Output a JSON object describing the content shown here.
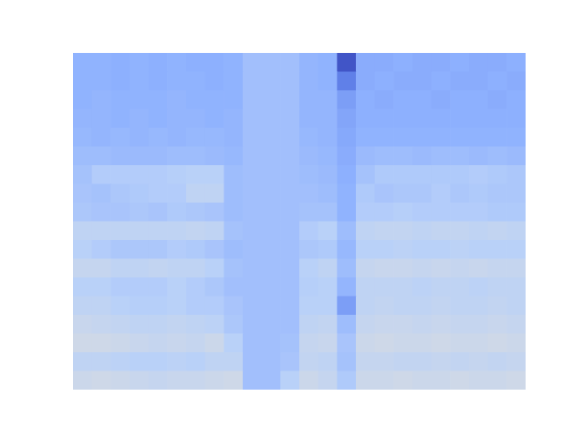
{
  "chart_data": {
    "type": "heatmap",
    "tick_labels": false,
    "xlim": [
      0,
      24
    ],
    "ylim": [
      18,
      0
    ],
    "color_range": [
      0,
      1
    ],
    "z": [
      [
        0.26,
        0.26,
        0.25,
        0.26,
        0.25,
        0.26,
        0.25,
        0.25,
        0.26,
        0.31,
        0.31,
        0.31,
        0.27,
        0.26,
        0.02,
        0.24,
        0.24,
        0.25,
        0.24,
        0.24,
        0.25,
        0.24,
        0.24,
        0.25
      ],
      [
        0.26,
        0.26,
        0.25,
        0.26,
        0.25,
        0.26,
        0.26,
        0.25,
        0.26,
        0.31,
        0.31,
        0.31,
        0.27,
        0.26,
        0.12,
        0.24,
        0.25,
        0.24,
        0.24,
        0.25,
        0.24,
        0.24,
        0.25,
        0.24
      ],
      [
        0.26,
        0.27,
        0.26,
        0.26,
        0.26,
        0.27,
        0.26,
        0.26,
        0.26,
        0.31,
        0.31,
        0.31,
        0.27,
        0.27,
        0.2,
        0.25,
        0.24,
        0.25,
        0.25,
        0.24,
        0.25,
        0.25,
        0.24,
        0.25
      ],
      [
        0.27,
        0.27,
        0.26,
        0.27,
        0.26,
        0.27,
        0.27,
        0.26,
        0.27,
        0.31,
        0.31,
        0.31,
        0.27,
        0.27,
        0.22,
        0.25,
        0.25,
        0.25,
        0.25,
        0.25,
        0.25,
        0.25,
        0.25,
        0.25
      ],
      [
        0.28,
        0.27,
        0.28,
        0.27,
        0.28,
        0.27,
        0.28,
        0.28,
        0.27,
        0.31,
        0.31,
        0.31,
        0.28,
        0.27,
        0.23,
        0.26,
        0.26,
        0.26,
        0.26,
        0.26,
        0.26,
        0.26,
        0.26,
        0.26
      ],
      [
        0.3,
        0.3,
        0.29,
        0.29,
        0.29,
        0.3,
        0.3,
        0.29,
        0.28,
        0.31,
        0.31,
        0.31,
        0.29,
        0.28,
        0.24,
        0.29,
        0.3,
        0.3,
        0.29,
        0.3,
        0.3,
        0.29,
        0.3,
        0.29
      ],
      [
        0.32,
        0.36,
        0.36,
        0.36,
        0.36,
        0.37,
        0.38,
        0.38,
        0.3,
        0.31,
        0.31,
        0.31,
        0.3,
        0.29,
        0.25,
        0.32,
        0.35,
        0.35,
        0.35,
        0.35,
        0.35,
        0.36,
        0.35,
        0.34
      ],
      [
        0.33,
        0.32,
        0.34,
        0.35,
        0.36,
        0.36,
        0.4,
        0.4,
        0.3,
        0.31,
        0.31,
        0.31,
        0.31,
        0.3,
        0.26,
        0.35,
        0.33,
        0.34,
        0.34,
        0.36,
        0.34,
        0.35,
        0.34,
        0.34
      ],
      [
        0.34,
        0.33,
        0.33,
        0.34,
        0.33,
        0.35,
        0.34,
        0.33,
        0.3,
        0.31,
        0.31,
        0.31,
        0.32,
        0.32,
        0.26,
        0.36,
        0.36,
        0.37,
        0.36,
        0.36,
        0.36,
        0.36,
        0.35,
        0.35
      ],
      [
        0.4,
        0.4,
        0.4,
        0.4,
        0.4,
        0.4,
        0.41,
        0.4,
        0.32,
        0.31,
        0.31,
        0.31,
        0.36,
        0.38,
        0.3,
        0.4,
        0.41,
        0.41,
        0.4,
        0.41,
        0.41,
        0.4,
        0.41,
        0.4
      ],
      [
        0.38,
        0.36,
        0.34,
        0.34,
        0.34,
        0.36,
        0.35,
        0.33,
        0.3,
        0.31,
        0.31,
        0.31,
        0.34,
        0.35,
        0.28,
        0.38,
        0.38,
        0.39,
        0.38,
        0.38,
        0.39,
        0.38,
        0.38,
        0.38
      ],
      [
        0.42,
        0.42,
        0.4,
        0.4,
        0.41,
        0.4,
        0.4,
        0.38,
        0.32,
        0.31,
        0.31,
        0.31,
        0.38,
        0.4,
        0.3,
        0.42,
        0.43,
        0.43,
        0.42,
        0.43,
        0.42,
        0.43,
        0.42,
        0.42
      ],
      [
        0.38,
        0.38,
        0.36,
        0.36,
        0.36,
        0.38,
        0.36,
        0.34,
        0.31,
        0.31,
        0.31,
        0.31,
        0.37,
        0.38,
        0.27,
        0.4,
        0.4,
        0.4,
        0.39,
        0.4,
        0.4,
        0.39,
        0.4,
        0.4
      ],
      [
        0.4,
        0.4,
        0.38,
        0.37,
        0.37,
        0.38,
        0.36,
        0.36,
        0.33,
        0.31,
        0.31,
        0.31,
        0.38,
        0.38,
        0.2,
        0.4,
        0.41,
        0.4,
        0.4,
        0.41,
        0.4,
        0.4,
        0.41,
        0.4
      ],
      [
        0.43,
        0.42,
        0.41,
        0.4,
        0.4,
        0.41,
        0.4,
        0.39,
        0.34,
        0.31,
        0.31,
        0.31,
        0.4,
        0.41,
        0.3,
        0.42,
        0.43,
        0.43,
        0.42,
        0.43,
        0.42,
        0.42,
        0.43,
        0.42
      ],
      [
        0.45,
        0.45,
        0.44,
        0.43,
        0.42,
        0.43,
        0.42,
        0.44,
        0.38,
        0.31,
        0.31,
        0.32,
        0.42,
        0.43,
        0.33,
        0.44,
        0.45,
        0.44,
        0.44,
        0.45,
        0.44,
        0.44,
        0.45,
        0.44
      ],
      [
        0.4,
        0.4,
        0.39,
        0.38,
        0.38,
        0.39,
        0.38,
        0.4,
        0.4,
        0.31,
        0.31,
        0.33,
        0.41,
        0.4,
        0.32,
        0.42,
        0.42,
        0.41,
        0.41,
        0.42,
        0.41,
        0.42,
        0.41,
        0.42
      ],
      [
        0.44,
        0.45,
        0.44,
        0.43,
        0.42,
        0.43,
        0.43,
        0.44,
        0.45,
        0.31,
        0.31,
        0.38,
        0.44,
        0.42,
        0.35,
        0.44,
        0.44,
        0.45,
        0.44,
        0.44,
        0.45,
        0.44,
        0.44,
        0.45
      ]
    ]
  }
}
